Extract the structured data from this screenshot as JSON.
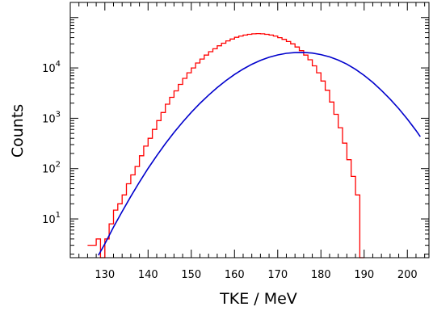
{
  "chart_data": {
    "type": "line",
    "title": "",
    "xlabel": "TKE / MeV",
    "ylabel": "Counts",
    "xlim": [
      122,
      205
    ],
    "ylim": [
      1.7,
      200000
    ],
    "yscale": "log",
    "grid": false,
    "x_ticks": [
      130,
      140,
      150,
      160,
      170,
      180,
      190,
      200
    ],
    "y_ticks": [
      {
        "value": 10,
        "mantissa": "10",
        "exponent": "1"
      },
      {
        "value": 100,
        "mantissa": "10",
        "exponent": "2"
      },
      {
        "value": 1000,
        "mantissa": "10",
        "exponent": "3"
      },
      {
        "value": 10000,
        "mantissa": "10",
        "exponent": "4"
      }
    ],
    "series": [
      {
        "style": "histogram",
        "color": "#ff0000",
        "bin_width": 1,
        "bins_start": 126,
        "values": [
          3,
          3,
          4,
          1.7,
          4,
          8,
          15,
          20,
          30,
          50,
          75,
          110,
          180,
          280,
          400,
          600,
          900,
          1300,
          1900,
          2600,
          3500,
          4700,
          6200,
          8000,
          10000,
          12500,
          15000,
          18000,
          21000,
          24000,
          27500,
          31000,
          34500,
          37500,
          40500,
          43000,
          45000,
          46500,
          47500,
          48000,
          47500,
          46500,
          45000,
          43000,
          40000,
          37000,
          33500,
          30000,
          26000,
          22000,
          18000,
          14500,
          11000,
          8000,
          5500,
          3600,
          2100,
          1200,
          650,
          320,
          150,
          70,
          30,
          1.7
        ]
      },
      {
        "style": "curve",
        "color": "#0000cc",
        "x": [
          128.5,
          130,
          132,
          134,
          136,
          138,
          140,
          142,
          144,
          146,
          148,
          150,
          152,
          154,
          156,
          158,
          160,
          162,
          164,
          166,
          168,
          170,
          172,
          174,
          176,
          178,
          180,
          182,
          184,
          186,
          188,
          190,
          192,
          194,
          196,
          198,
          200,
          202,
          203
        ],
        "values": [
          1.9,
          3.2,
          6.9,
          14,
          28,
          54,
          101,
          180,
          312,
          521,
          840,
          1310,
          1970,
          2880,
          4070,
          5580,
          7400,
          9500,
          11800,
          14100,
          16300,
          18100,
          19500,
          20200,
          20300,
          19700,
          18400,
          16600,
          14300,
          11900,
          9400,
          7100,
          5150,
          3580,
          2400,
          1550,
          960,
          570,
          430
        ]
      }
    ]
  }
}
